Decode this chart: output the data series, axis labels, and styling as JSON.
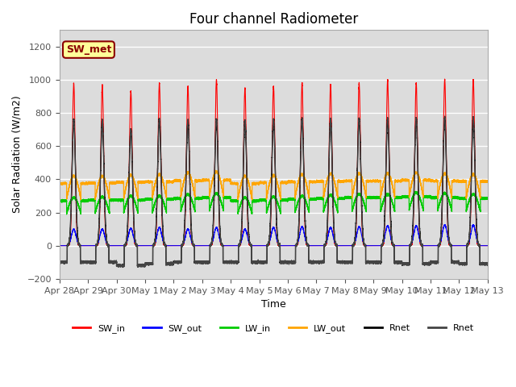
{
  "title": "Four channel Radiometer",
  "xlabel": "Time",
  "ylabel": "Solar Radiation (W/m2)",
  "ylim": [
    -200,
    1300
  ],
  "yticks": [
    -200,
    0,
    200,
    400,
    600,
    800,
    1000,
    1200
  ],
  "plot_bg_color": "#dcdcdc",
  "annotation_text": "SW_met",
  "annotation_bg": "#ffff99",
  "annotation_border": "#8b0000",
  "legend_entries": [
    "SW_in",
    "SW_out",
    "LW_in",
    "LW_out",
    "Rnet",
    "Rnet"
  ],
  "legend_colors": [
    "#ff0000",
    "#0000ff",
    "#00cc00",
    "#ffa500",
    "#000000",
    "#444444"
  ],
  "tick_labels": [
    "Apr 28",
    "Apr 29",
    "Apr 30",
    "May 1",
    "May 2",
    "May 3",
    "May 4",
    "May 5",
    "May 6",
    "May 7",
    "May 8",
    "May 9",
    "May 10",
    "May 11",
    "May 12",
    "May 13"
  ],
  "SW_in_peak": [
    980,
    970,
    930,
    980,
    960,
    1000,
    950,
    960,
    980,
    970,
    980,
    1000,
    980,
    1000,
    1000
  ],
  "SW_out_peak": [
    100,
    100,
    105,
    110,
    100,
    110,
    100,
    110,
    115,
    110,
    115,
    120,
    120,
    125,
    125
  ],
  "LW_in_day": [
    290,
    295,
    300,
    300,
    310,
    315,
    290,
    295,
    300,
    305,
    310,
    310,
    320,
    315,
    310
  ],
  "LW_in_night": [
    270,
    275,
    275,
    280,
    285,
    290,
    270,
    275,
    280,
    285,
    290,
    290,
    295,
    290,
    285
  ],
  "LW_out_day": [
    420,
    420,
    425,
    430,
    440,
    445,
    420,
    425,
    430,
    435,
    435,
    435,
    440,
    435,
    430
  ],
  "LW_out_night": [
    375,
    378,
    382,
    385,
    392,
    395,
    375,
    380,
    385,
    388,
    390,
    390,
    395,
    390,
    388
  ],
  "Rnet_peak": [
    760,
    755,
    700,
    765,
    755,
    760,
    755,
    760,
    765,
    765,
    765,
    765,
    768,
    770,
    770
  ],
  "Rnet_night": [
    -100,
    -100,
    -120,
    -110,
    -100,
    -100,
    -100,
    -100,
    -100,
    -100,
    -100,
    -100,
    -110,
    -100,
    -110
  ]
}
